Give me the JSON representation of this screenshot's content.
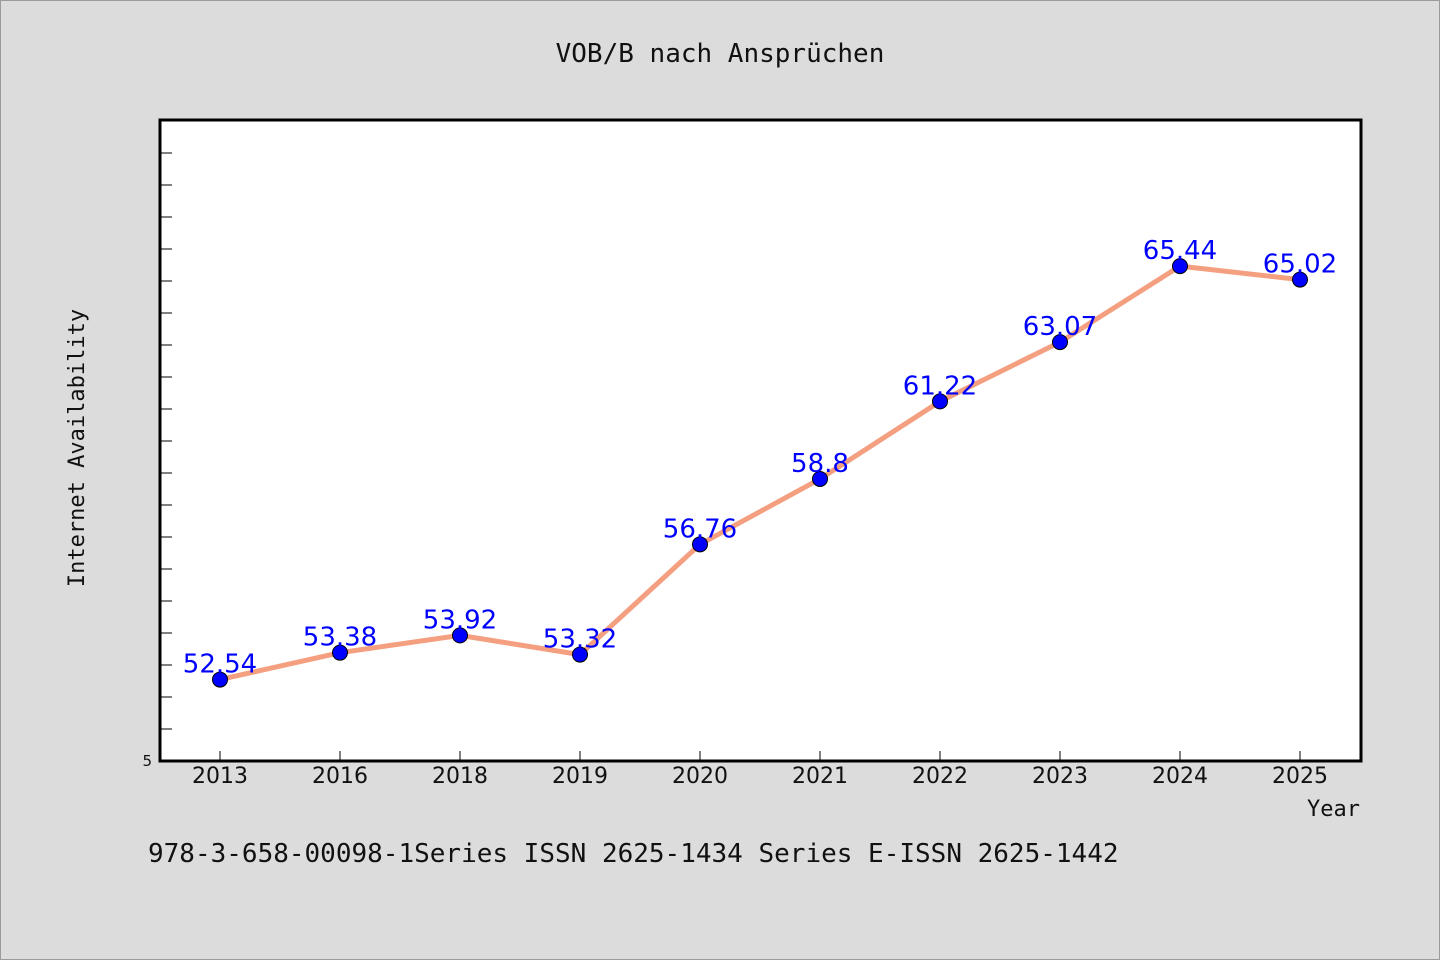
{
  "caption": "978-3-658-00098-1Series ISSN 2625-1434 Series E-ISSN 2625-1442",
  "colors": {
    "line": "#f4a080",
    "marker": "#0000ff",
    "data_label": "#0000ff"
  },
  "chart_data": {
    "type": "line",
    "title": "VOB/B nach Ansprüchen",
    "xlabel": "Year",
    "ylabel": "Internet Availability",
    "categories": [
      "2013",
      "2016",
      "2018",
      "2019",
      "2020",
      "2021",
      "2022",
      "2023",
      "2024",
      "2025"
    ],
    "series": [
      {
        "values": [
          52.54,
          53.38,
          53.92,
          53.32,
          56.76,
          58.8,
          61.22,
          63.07,
          65.44,
          65.02
        ]
      }
    ],
    "data_labels": [
      "52.54",
      "53.38",
      "53.92",
      "53.32",
      "56.76",
      "58.8",
      "61.22",
      "63.07",
      "65.44",
      "65.02"
    ],
    "y_tick_labels": [
      "5"
    ],
    "ylim": [
      50,
      70
    ],
    "grid": false,
    "legend": "none"
  }
}
